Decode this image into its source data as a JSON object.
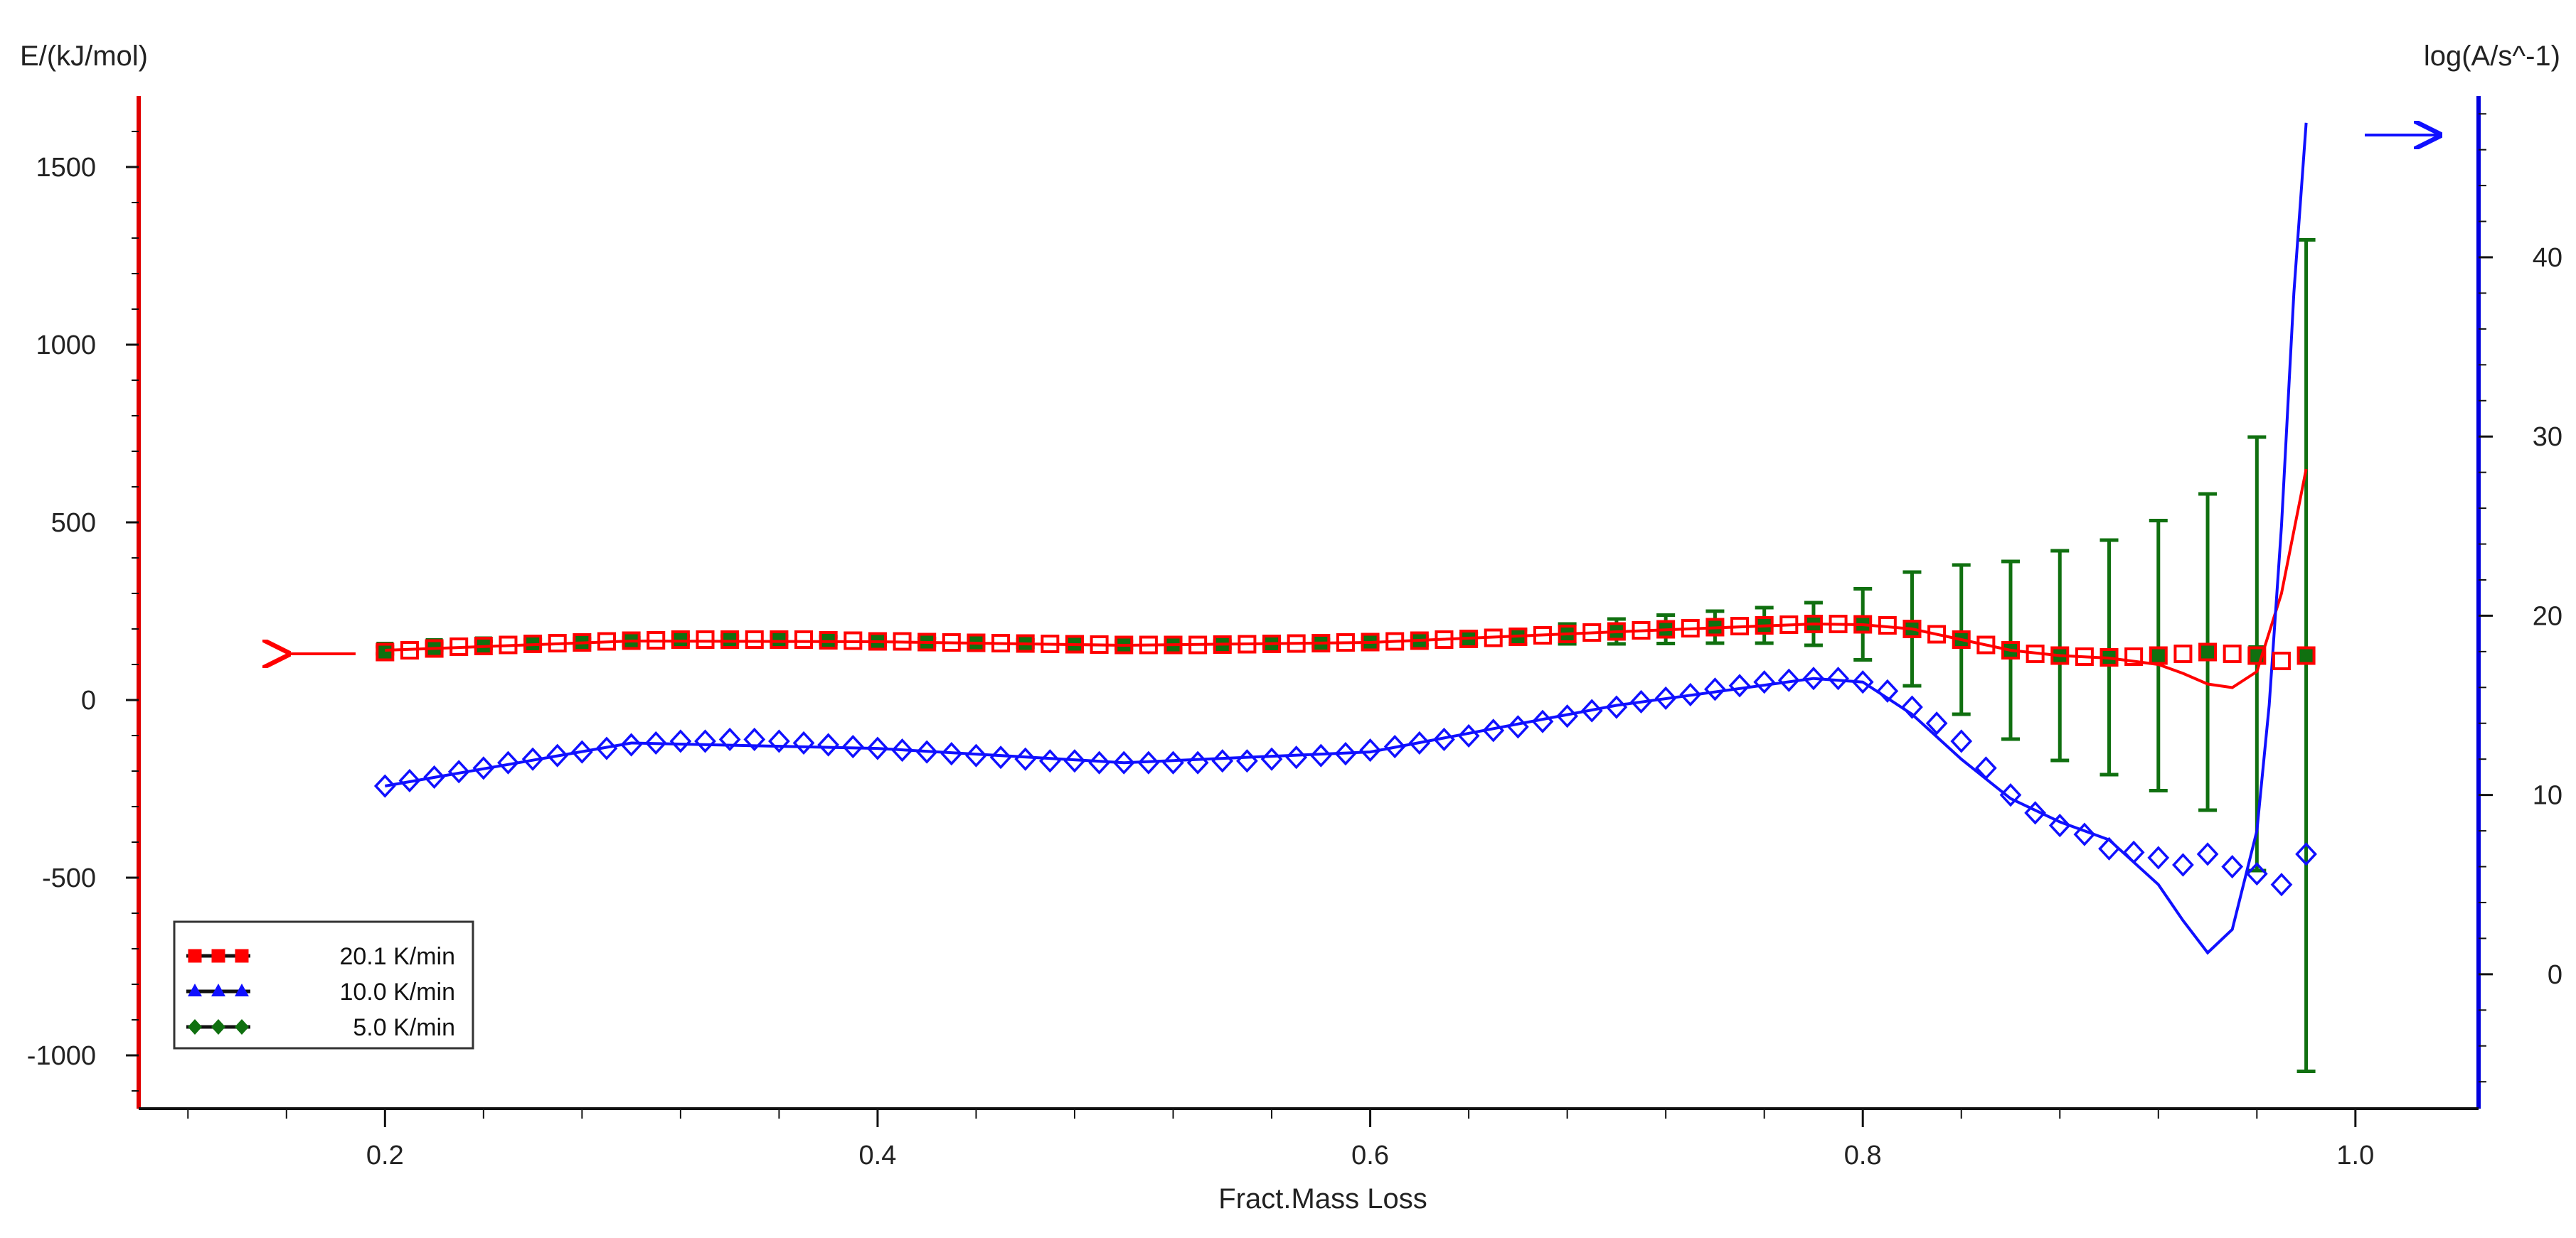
{
  "chart_data": {
    "type": "scatter",
    "title": "",
    "xlabel": "Fract.Mass Loss",
    "ylabel_left": "E/(kJ/mol)",
    "ylabel_right": "log(A/s^-1)",
    "xlim": [
      0.1,
      1.05
    ],
    "ylim_left": [
      -1150,
      1700
    ],
    "ylim_right": [
      -7.5,
      49
    ],
    "x_ticks": [
      "0.2",
      "0.4",
      "0.6",
      "0.8",
      "1.0"
    ],
    "y_left_ticks": [
      "-1000",
      "-500",
      "0",
      "500",
      "1000",
      "1500"
    ],
    "y_right_ticks": [
      "0",
      "10",
      "20",
      "30",
      "40"
    ],
    "legend_position": "bottom-left",
    "legend": [
      "20.1 K/min",
      "10.0 K/min",
      "5.0 K/min"
    ],
    "grid": false,
    "colors": {
      "red": "#ff0000",
      "blue": "#1010ff",
      "green": "#107010",
      "left_axis": "#e00000",
      "right_axis": "#0000dd"
    },
    "series": [
      {
        "id": "E_points",
        "marker": "square",
        "color": "red",
        "axis": "left",
        "x": [
          0.2,
          0.21,
          0.22,
          0.23,
          0.24,
          0.25,
          0.26,
          0.27,
          0.28,
          0.29,
          0.3,
          0.31,
          0.32,
          0.33,
          0.34,
          0.35,
          0.36,
          0.37,
          0.38,
          0.39,
          0.4,
          0.41,
          0.42,
          0.43,
          0.44,
          0.45,
          0.46,
          0.47,
          0.48,
          0.49,
          0.5,
          0.51,
          0.52,
          0.53,
          0.54,
          0.55,
          0.56,
          0.57,
          0.58,
          0.59,
          0.6,
          0.61,
          0.62,
          0.63,
          0.64,
          0.65,
          0.66,
          0.67,
          0.68,
          0.69,
          0.7,
          0.71,
          0.72,
          0.73,
          0.74,
          0.75,
          0.76,
          0.77,
          0.78,
          0.79,
          0.8,
          0.81,
          0.82,
          0.83,
          0.84,
          0.85,
          0.86,
          0.87,
          0.88,
          0.89,
          0.9,
          0.91,
          0.92,
          0.93,
          0.94,
          0.95,
          0.96,
          0.97,
          0.98
        ],
        "y": [
          135,
          140,
          145,
          150,
          152,
          155,
          158,
          160,
          162,
          165,
          167,
          168,
          170,
          170,
          170,
          170,
          170,
          170,
          168,
          167,
          165,
          165,
          163,
          162,
          161,
          160,
          159,
          158,
          157,
          156,
          155,
          155,
          155,
          155,
          156,
          157,
          158,
          159,
          160,
          162,
          163,
          165,
          167,
          170,
          172,
          175,
          178,
          182,
          186,
          190,
          193,
          196,
          199,
          202,
          205,
          208,
          210,
          212,
          214,
          214,
          213,
          210,
          200,
          185,
          170,
          155,
          140,
          130,
          125,
          122,
          120,
          122,
          125,
          130,
          135,
          130,
          125,
          110,
          125
        ]
      },
      {
        "id": "E_errorbars",
        "marker": "errorbar",
        "color": "green",
        "axis": "left",
        "x": [
          0.2,
          0.22,
          0.24,
          0.26,
          0.28,
          0.3,
          0.32,
          0.34,
          0.36,
          0.38,
          0.4,
          0.42,
          0.44,
          0.46,
          0.48,
          0.5,
          0.52,
          0.54,
          0.56,
          0.58,
          0.6,
          0.62,
          0.64,
          0.66,
          0.68,
          0.7,
          0.72,
          0.74,
          0.76,
          0.78,
          0.8,
          0.82,
          0.84,
          0.86,
          0.88,
          0.9,
          0.92,
          0.94,
          0.96,
          0.98
        ],
        "y": [
          140,
          150,
          155,
          160,
          162,
          165,
          170,
          170,
          170,
          168,
          165,
          163,
          161,
          159,
          157,
          155,
          155,
          156,
          158,
          160,
          163,
          167,
          172,
          178,
          186,
          193,
          199,
          205,
          210,
          214,
          213,
          200,
          170,
          140,
          125,
          120,
          125,
          135,
          130,
          125
        ],
        "err": [
          10,
          10,
          10,
          10,
          10,
          10,
          10,
          10,
          10,
          10,
          10,
          10,
          10,
          10,
          10,
          10,
          10,
          10,
          10,
          10,
          10,
          12,
          15,
          20,
          28,
          35,
          40,
          45,
          50,
          60,
          100,
          160,
          210,
          250,
          295,
          330,
          380,
          445,
          610,
          1170
        ]
      },
      {
        "id": "E_curve",
        "marker": "line",
        "color": "red",
        "axis": "left",
        "x": [
          0.2,
          0.3,
          0.4,
          0.5,
          0.6,
          0.7,
          0.78,
          0.8,
          0.82,
          0.84,
          0.86,
          0.88,
          0.9,
          0.92,
          0.93,
          0.94,
          0.95,
          0.96,
          0.97,
          0.98
        ],
        "y": [
          140,
          166,
          164,
          154,
          162,
          192,
          214,
          212,
          200,
          170,
          140,
          125,
          118,
          100,
          75,
          45,
          35,
          80,
          300,
          650
        ]
      },
      {
        "id": "logA_points",
        "marker": "diamond",
        "color": "blue",
        "axis": "right",
        "x": [
          0.2,
          0.21,
          0.22,
          0.23,
          0.24,
          0.25,
          0.26,
          0.27,
          0.28,
          0.29,
          0.3,
          0.31,
          0.32,
          0.33,
          0.34,
          0.35,
          0.36,
          0.37,
          0.38,
          0.39,
          0.4,
          0.41,
          0.42,
          0.43,
          0.44,
          0.45,
          0.46,
          0.47,
          0.48,
          0.49,
          0.5,
          0.51,
          0.52,
          0.53,
          0.54,
          0.55,
          0.56,
          0.57,
          0.58,
          0.59,
          0.6,
          0.61,
          0.62,
          0.63,
          0.64,
          0.65,
          0.66,
          0.67,
          0.68,
          0.69,
          0.7,
          0.71,
          0.72,
          0.73,
          0.74,
          0.75,
          0.76,
          0.77,
          0.78,
          0.79,
          0.8,
          0.81,
          0.82,
          0.83,
          0.84,
          0.85,
          0.86,
          0.87,
          0.88,
          0.89,
          0.9,
          0.91,
          0.92,
          0.93,
          0.94,
          0.95,
          0.96,
          0.97,
          0.98
        ],
        "y": [
          10.5,
          10.8,
          11.0,
          11.3,
          11.5,
          11.8,
          12.0,
          12.2,
          12.4,
          12.6,
          12.8,
          12.9,
          13.0,
          13.0,
          13.1,
          13.1,
          13.0,
          12.9,
          12.8,
          12.7,
          12.6,
          12.5,
          12.4,
          12.3,
          12.2,
          12.1,
          12.0,
          11.9,
          11.9,
          11.8,
          11.8,
          11.8,
          11.8,
          11.8,
          11.9,
          11.9,
          12.0,
          12.1,
          12.2,
          12.3,
          12.5,
          12.7,
          12.9,
          13.1,
          13.3,
          13.6,
          13.8,
          14.1,
          14.4,
          14.7,
          14.9,
          15.2,
          15.4,
          15.6,
          15.9,
          16.1,
          16.3,
          16.4,
          16.5,
          16.5,
          16.3,
          15.8,
          14.9,
          14.0,
          13.0,
          11.5,
          10.0,
          9.0,
          8.3,
          7.8,
          7.0,
          6.8,
          6.5,
          6.1,
          6.7,
          6.0,
          5.6,
          5.0,
          6.7
        ]
      },
      {
        "id": "logA_curve",
        "marker": "line",
        "color": "blue",
        "axis": "right",
        "x": [
          0.2,
          0.3,
          0.4,
          0.5,
          0.6,
          0.7,
          0.78,
          0.8,
          0.82,
          0.84,
          0.86,
          0.88,
          0.9,
          0.92,
          0.93,
          0.94,
          0.95,
          0.96,
          0.965,
          0.97,
          0.975,
          0.98
        ],
        "y": [
          10.5,
          12.9,
          12.6,
          11.8,
          12.4,
          15.0,
          16.5,
          16.3,
          14.5,
          12.0,
          9.8,
          8.5,
          7.5,
          5.0,
          3.0,
          1.2,
          2.5,
          8.0,
          15.0,
          25.0,
          38.0,
          47.5
        ]
      }
    ]
  }
}
